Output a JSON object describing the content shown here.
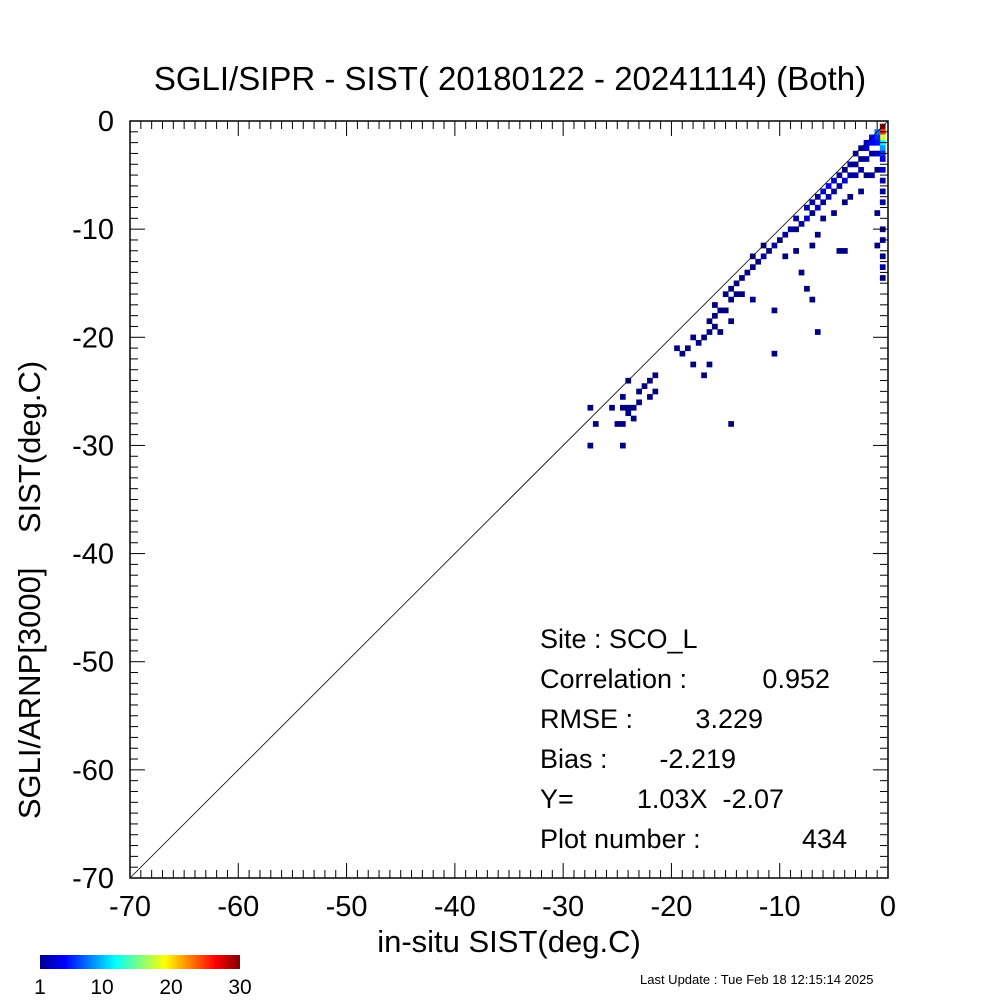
{
  "chart_data": {
    "type": "heatmap",
    "title": "SGLI/SIPR - SIST( 20180122 - 20241114) (Both)",
    "xlabel": "in-situ SIST(deg.C)",
    "ylabel": "SGLI/ARNP[3000]    SIST(deg.C)",
    "xlim": [
      -70,
      0
    ],
    "ylim": [
      -70,
      0
    ],
    "x_ticks": [
      "-70",
      "-60",
      "-50",
      "-40",
      "-30",
      "-20",
      "-10",
      "0"
    ],
    "y_ticks": [
      "-70",
      "-60",
      "-50",
      "-40",
      "-30",
      "-20",
      "-10",
      "0"
    ],
    "reference_line": "1:1",
    "bin_size": 0.5,
    "colorbar": {
      "ticks": [
        "1",
        "10",
        "20",
        "30"
      ],
      "min": 1,
      "max": 30,
      "colormap": "jet"
    },
    "stats": [
      {
        "label": "Site : SCO_L",
        "value": ""
      },
      {
        "label": "Correlation :",
        "value": "0.952"
      },
      {
        "label": "RMSE :",
        "value": "3.229"
      },
      {
        "label": "Bias :",
        "value": "-2.219"
      },
      {
        "label": "Y=",
        "value": "1.03X  -2.07"
      },
      {
        "label": "Plot number :",
        "value": "434"
      }
    ],
    "cells": [
      [
        -0.5,
        -0.5,
        30
      ],
      [
        -0.5,
        -1,
        25
      ],
      [
        -0.5,
        -1.5,
        18
      ],
      [
        -0.5,
        -2,
        12
      ],
      [
        -1,
        -1,
        8
      ],
      [
        -1,
        -1.5,
        6
      ],
      [
        -0.5,
        -2.5,
        9
      ],
      [
        -0.5,
        -3,
        6
      ],
      [
        -1,
        -2,
        5
      ],
      [
        -1.5,
        -1.5,
        5
      ],
      [
        -1.5,
        -2,
        4
      ],
      [
        -2,
        -2,
        4
      ],
      [
        -0.5,
        -3.5,
        4
      ],
      [
        -0.5,
        -4.5,
        3
      ],
      [
        -1,
        -3,
        3
      ],
      [
        -1.5,
        -3,
        2
      ],
      [
        -2,
        -2.5,
        3
      ],
      [
        -2.5,
        -2.5,
        2
      ],
      [
        -2,
        -3.5,
        2
      ],
      [
        -2.5,
        -3.5,
        1
      ],
      [
        -3,
        -3,
        2
      ],
      [
        -3,
        -4,
        1
      ],
      [
        -0.5,
        -5.5,
        2
      ],
      [
        -0.5,
        -6.5,
        2
      ],
      [
        -0.5,
        -7.5,
        2
      ],
      [
        -1,
        -4.5,
        1
      ],
      [
        -1.5,
        -5,
        2
      ],
      [
        -2,
        -5,
        1
      ],
      [
        -2.5,
        -4.5,
        2
      ],
      [
        -3,
        -5,
        2
      ],
      [
        -3.5,
        -4,
        2
      ],
      [
        -3.5,
        -5,
        2
      ],
      [
        -4,
        -4.5,
        1
      ],
      [
        -4,
        -5.5,
        3
      ],
      [
        -4.5,
        -5,
        2
      ],
      [
        -4.5,
        -6,
        2
      ],
      [
        -5,
        -5.5,
        3
      ],
      [
        -5,
        -6.5,
        2
      ],
      [
        -5.5,
        -6,
        4
      ],
      [
        -5.5,
        -7,
        2
      ],
      [
        -6,
        -6.5,
        3
      ],
      [
        -6,
        -7.5,
        2
      ],
      [
        -6.5,
        -7,
        2
      ],
      [
        -6.5,
        -8,
        3
      ],
      [
        -7,
        -7.5,
        2
      ],
      [
        -7,
        -8.5,
        1
      ],
      [
        -7.5,
        -8,
        2
      ],
      [
        -7.5,
        -9,
        3
      ],
      [
        -8,
        -9.5,
        2
      ],
      [
        -8.5,
        -9,
        2
      ],
      [
        -8.5,
        -10,
        1
      ],
      [
        -9,
        -10,
        2
      ],
      [
        -9.5,
        -10.5,
        2
      ],
      [
        -10,
        -11,
        1
      ],
      [
        -10.5,
        -11.5,
        2
      ],
      [
        -11,
        -12,
        1
      ],
      [
        -11.5,
        -12.5,
        2
      ],
      [
        -12,
        -13,
        1
      ],
      [
        -4,
        -7.5,
        1
      ],
      [
        -5,
        -8.5,
        1
      ],
      [
        -6,
        -9,
        1
      ],
      [
        -6.5,
        -10.5,
        1
      ],
      [
        -7,
        -11.5,
        1
      ],
      [
        -8.5,
        -12,
        1
      ],
      [
        -9.5,
        -12.5,
        1
      ],
      [
        -3.5,
        -7,
        1
      ],
      [
        -2.5,
        -6.5,
        1
      ],
      [
        -1,
        -8.5,
        1
      ],
      [
        -0.5,
        -10,
        1
      ],
      [
        -0.5,
        -11,
        2
      ],
      [
        -0.5,
        -12.5,
        1
      ],
      [
        -0.5,
        -13.5,
        2
      ],
      [
        -0.5,
        -14.5,
        1
      ],
      [
        -1,
        -11.5,
        1
      ],
      [
        -4,
        -12,
        1
      ],
      [
        -4.5,
        -12,
        1
      ],
      [
        -8,
        -14,
        1
      ],
      [
        -11.5,
        -11.5,
        1
      ],
      [
        -12.5,
        -12.5,
        1
      ],
      [
        -12.5,
        -13.5,
        1
      ],
      [
        -13,
        -14,
        1
      ],
      [
        -13.5,
        -14.5,
        1
      ],
      [
        -14,
        -15,
        1
      ],
      [
        -14.5,
        -15.5,
        1
      ],
      [
        -14.5,
        -16.5,
        1
      ],
      [
        -15,
        -16,
        1
      ],
      [
        -14,
        -16,
        1
      ],
      [
        -13.5,
        -16,
        1
      ],
      [
        -12.5,
        -16.5,
        1
      ],
      [
        -15,
        -17.5,
        1
      ],
      [
        -14.5,
        -18.5,
        1
      ],
      [
        -16,
        -17,
        1
      ],
      [
        -15.5,
        -17.5,
        1
      ],
      [
        -16,
        -18,
        1
      ],
      [
        -16.5,
        -18.5,
        1
      ],
      [
        -16,
        -19,
        1
      ],
      [
        -15.5,
        -19.5,
        1
      ],
      [
        -16.5,
        -19.5,
        1
      ],
      [
        -17,
        -20,
        1
      ],
      [
        -17.5,
        -20.5,
        1
      ],
      [
        -18,
        -20,
        1
      ],
      [
        -18.5,
        -21,
        1
      ],
      [
        -19.5,
        -21,
        1
      ],
      [
        -19,
        -21.5,
        1
      ],
      [
        -16.5,
        -22.5,
        1
      ],
      [
        -18,
        -22.5,
        1
      ],
      [
        -17,
        -23.5,
        1
      ],
      [
        -7.5,
        -15.5,
        1
      ],
      [
        -7,
        -16.5,
        1
      ],
      [
        -10.5,
        -17.5,
        1
      ],
      [
        -6.5,
        -19.5,
        1
      ],
      [
        -10.5,
        -21.5,
        1
      ],
      [
        -21.5,
        -23.5,
        1
      ],
      [
        -22,
        -24,
        1
      ],
      [
        -22.5,
        -24.5,
        1
      ],
      [
        -21.5,
        -25,
        1
      ],
      [
        -22,
        -25.5,
        1
      ],
      [
        -23,
        -25,
        1
      ],
      [
        -23,
        -26,
        1
      ],
      [
        -23.5,
        -26.5,
        1
      ],
      [
        -24,
        -26.5,
        1
      ],
      [
        -24.5,
        -26.5,
        1
      ],
      [
        -24,
        -27,
        1
      ],
      [
        -23.5,
        -27.5,
        1
      ],
      [
        -24.5,
        -25.5,
        1
      ],
      [
        -24,
        -24,
        1
      ],
      [
        -27.5,
        -26.5,
        1
      ],
      [
        -27,
        -28,
        1
      ],
      [
        -25,
        -28,
        1
      ],
      [
        -24.5,
        -28,
        1
      ],
      [
        -27.5,
        -30,
        1
      ],
      [
        -24.5,
        -30,
        1
      ],
      [
        -14.5,
        -28,
        1
      ],
      [
        -25.5,
        -26.5,
        1
      ]
    ]
  },
  "footer": {
    "last_update": "Last Update : Tue Feb 18 12:15:14 2025"
  }
}
